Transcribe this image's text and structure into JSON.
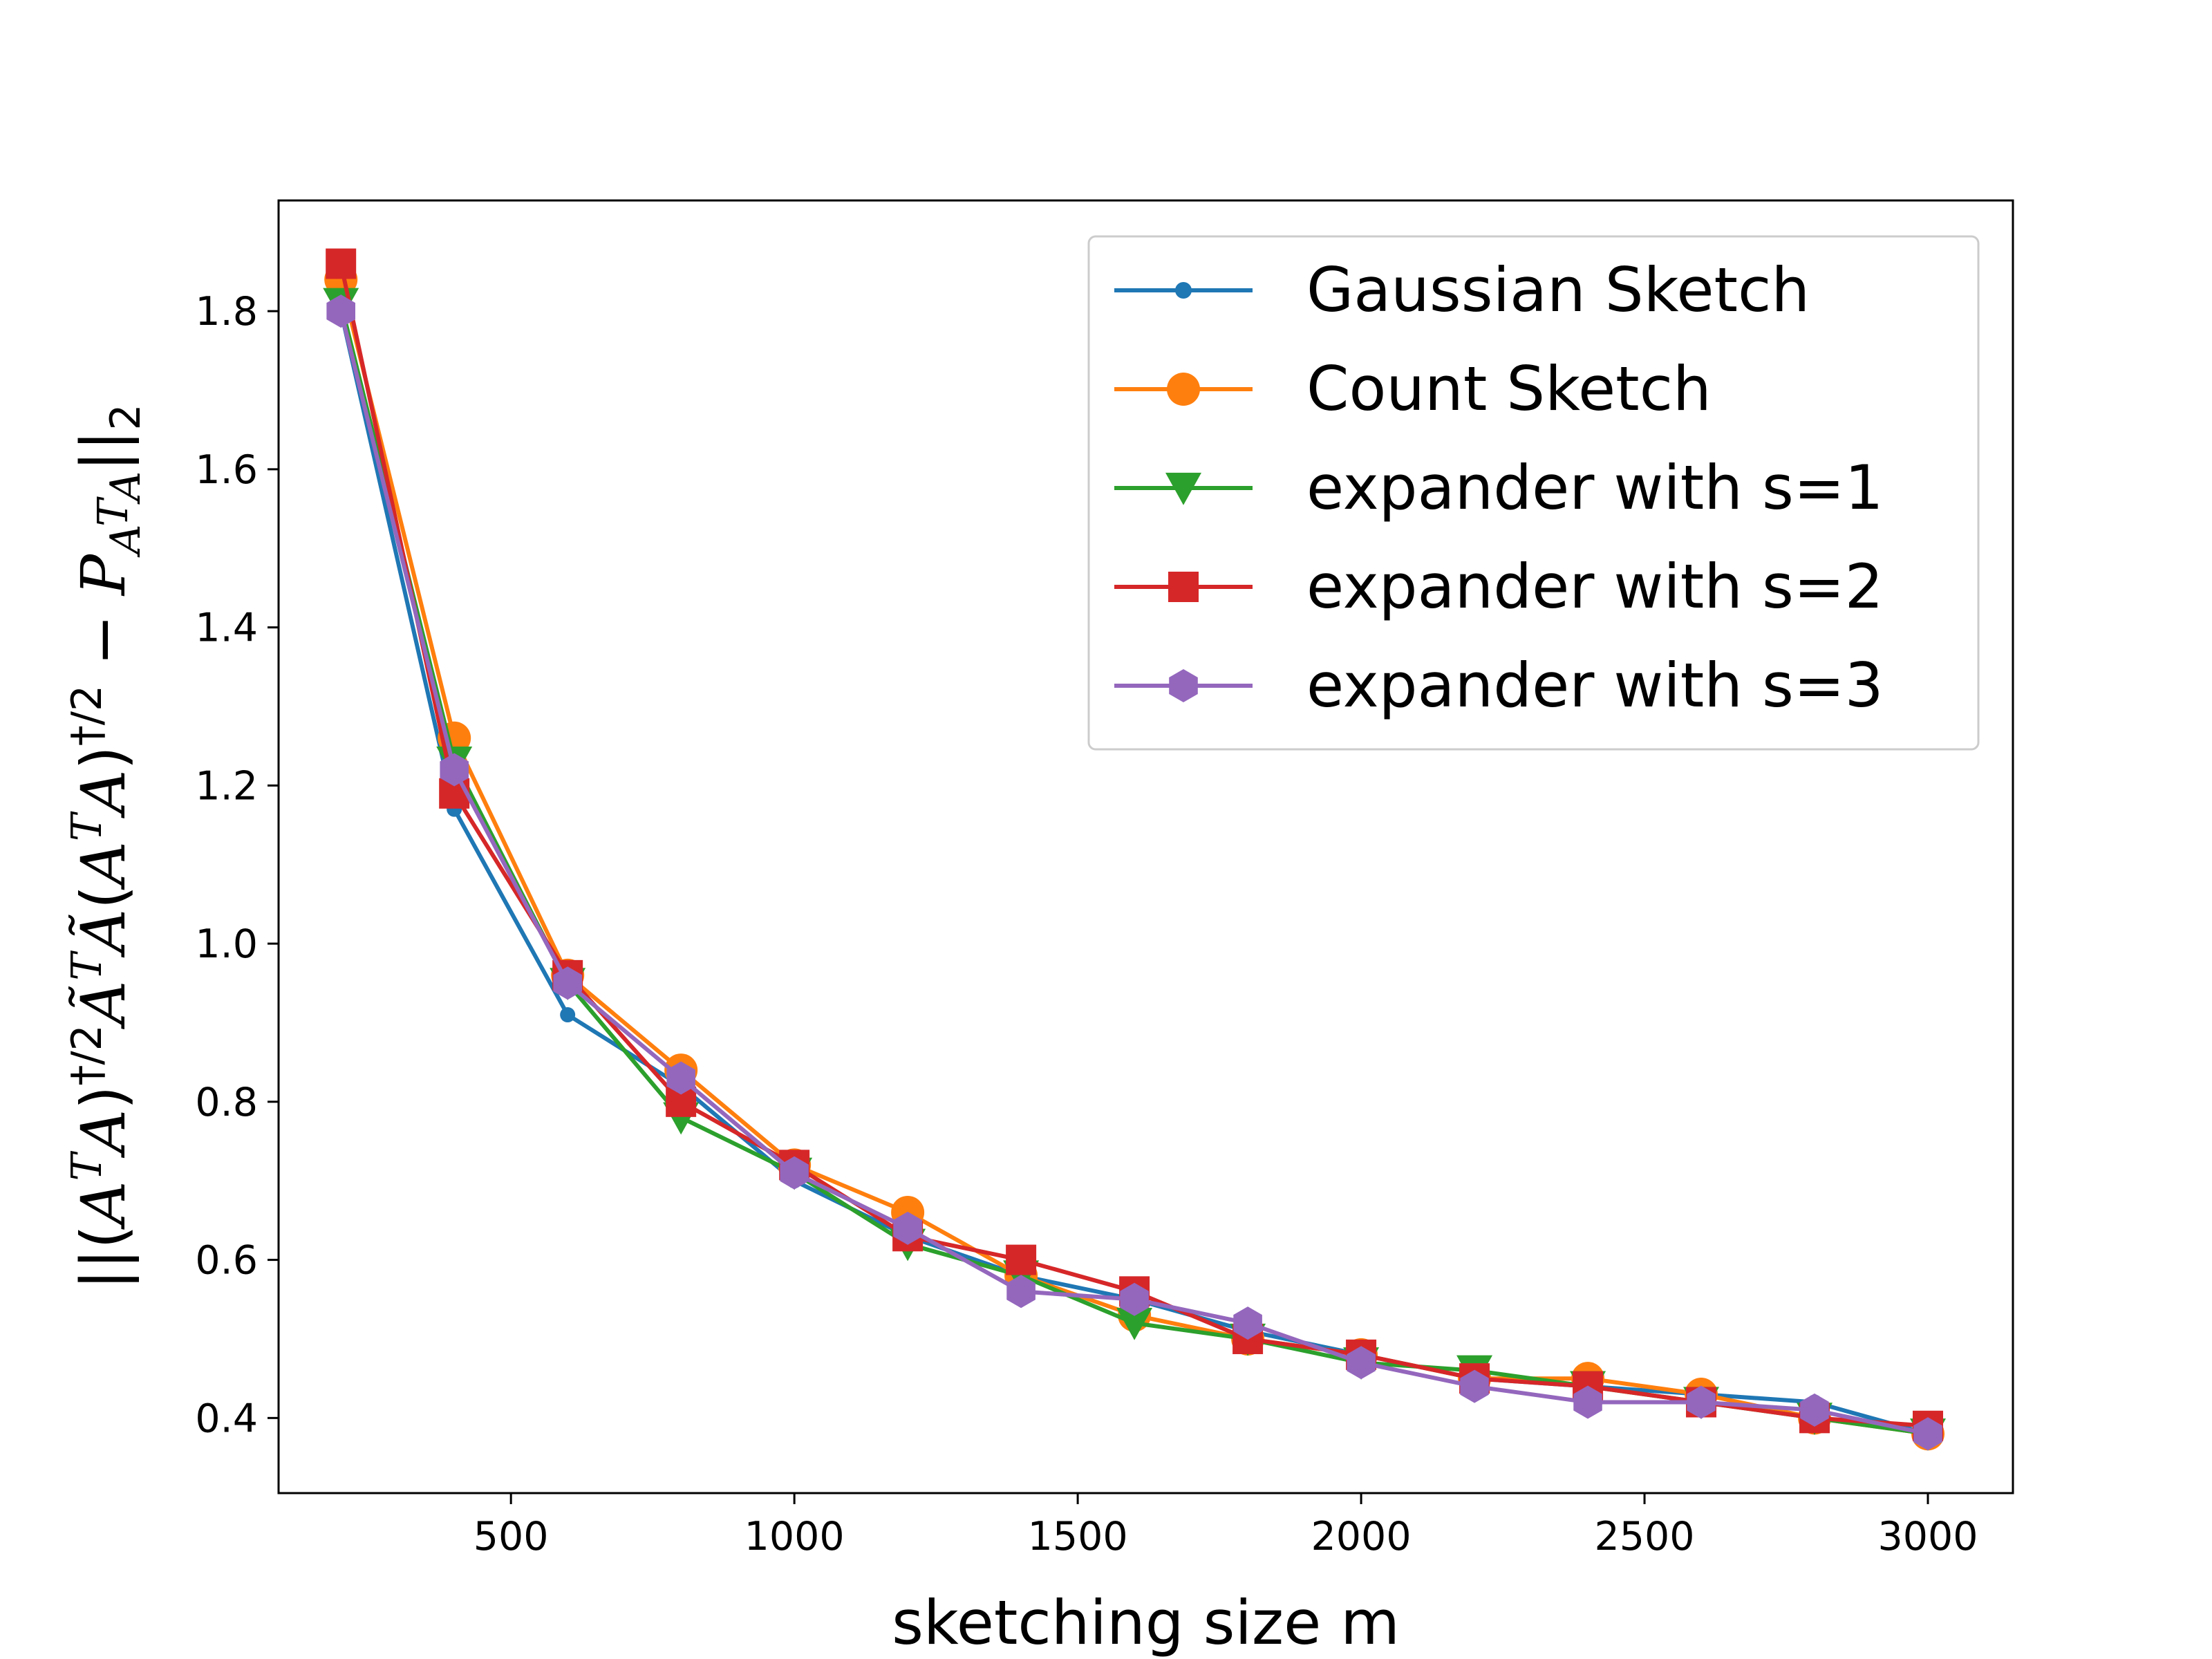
{
  "chart_data": {
    "type": "line",
    "title": "",
    "xlabel": "sketching size m",
    "ylabel_parts": [
      "||(",
      "A",
      "T",
      "A",
      ")",
      "†/2",
      "Ã",
      "T",
      "Ã",
      "(",
      "A",
      "T",
      "A",
      ")",
      "†/2",
      " − ",
      "P",
      "A",
      "T",
      "A",
      "||",
      "2"
    ],
    "xlim": [
      90,
      3150
    ],
    "ylim": [
      0.305,
      1.94
    ],
    "xticks": [
      500,
      1000,
      1500,
      2000,
      2500,
      3000
    ],
    "yticks": [
      0.4,
      0.6,
      0.8,
      1.0,
      1.2,
      1.4,
      1.6,
      1.8
    ],
    "xtick_labels": [
      "500",
      "1000",
      "1500",
      "2000",
      "2500",
      "3000"
    ],
    "ytick_labels": [
      "0.4",
      "0.6",
      "0.8",
      "1.0",
      "1.2",
      "1.4",
      "1.6",
      "1.8"
    ],
    "grid": false,
    "legend_position": "top-right",
    "x": [
      200,
      400,
      600,
      800,
      1000,
      1200,
      1400,
      1600,
      1800,
      2000,
      2200,
      2400,
      2600,
      2800,
      3000
    ],
    "series": [
      {
        "name": "Gaussian Sketch",
        "color": "#1f77b4",
        "marker": "point",
        "values": [
          1.8,
          1.17,
          0.91,
          0.82,
          0.7,
          0.63,
          0.58,
          0.55,
          0.51,
          0.48,
          0.45,
          0.44,
          0.43,
          0.42,
          0.38
        ]
      },
      {
        "name": "Count Sketch",
        "color": "#ff7f0e",
        "marker": "circle",
        "values": [
          1.84,
          1.26,
          0.96,
          0.84,
          0.72,
          0.66,
          0.58,
          0.53,
          0.5,
          0.48,
          0.45,
          0.45,
          0.43,
          0.4,
          0.38
        ]
      },
      {
        "name": "expander with s=1",
        "color": "#2ca02c",
        "marker": "triangle-down",
        "values": [
          1.81,
          1.23,
          0.95,
          0.78,
          0.71,
          0.62,
          0.58,
          0.52,
          0.5,
          0.47,
          0.46,
          0.44,
          0.42,
          0.4,
          0.38
        ]
      },
      {
        "name": "expander with s=2",
        "color": "#d62728",
        "marker": "square",
        "values": [
          1.86,
          1.19,
          0.96,
          0.8,
          0.72,
          0.63,
          0.6,
          0.56,
          0.5,
          0.48,
          0.45,
          0.44,
          0.42,
          0.4,
          0.39
        ]
      },
      {
        "name": "expander with s=3",
        "color": "#9467bd",
        "marker": "hexagon",
        "values": [
          1.8,
          1.22,
          0.95,
          0.83,
          0.71,
          0.64,
          0.56,
          0.55,
          0.52,
          0.47,
          0.44,
          0.42,
          0.42,
          0.41,
          0.38
        ]
      }
    ]
  }
}
